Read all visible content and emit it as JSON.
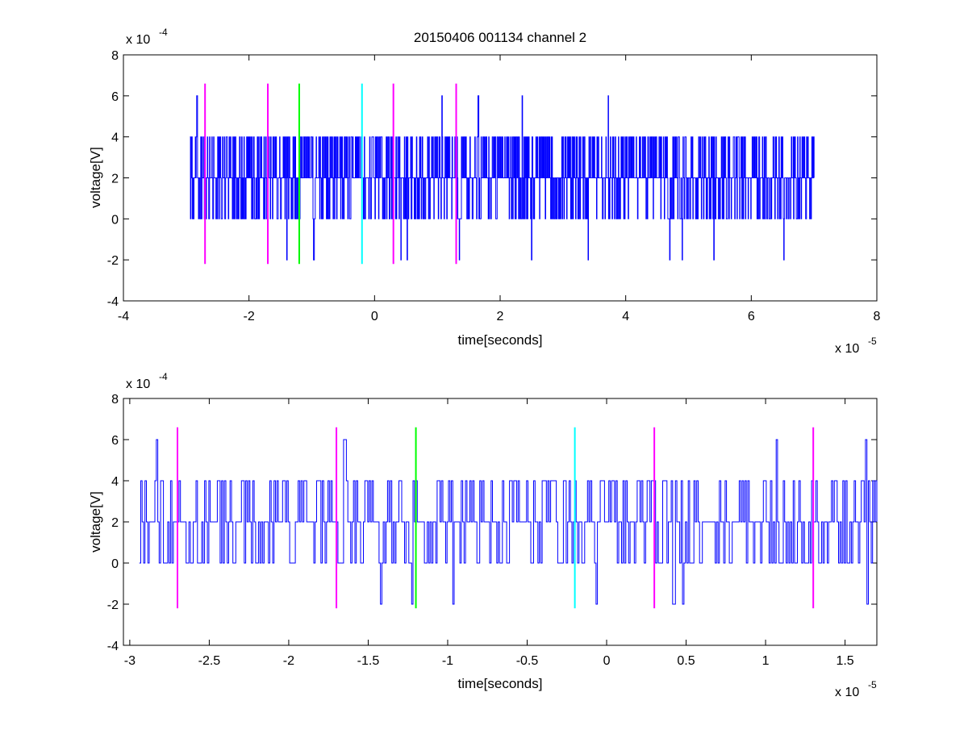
{
  "figure": {
    "title": "20150406 001134 channel 2"
  },
  "colors": {
    "trace": "#0000ff",
    "marker_magenta": "#ff00ff",
    "marker_green": "#00ff00",
    "marker_cyan": "#00ffff",
    "axes": "#000000"
  },
  "chart_data": [
    {
      "type": "line",
      "title": "20150406 001134 channel 2",
      "xlabel": "time[seconds]",
      "ylabel": "voltage[V]",
      "x_exponent_label": "x 10",
      "x_exponent": "-5",
      "y_exponent_label": "x 10",
      "y_exponent": "-4",
      "xlim": [
        -4,
        8
      ],
      "ylim": [
        -4,
        8
      ],
      "x_ticks": [
        "-4",
        "-2",
        "0",
        "2",
        "4",
        "6",
        "8"
      ],
      "y_ticks": [
        "-4",
        "-2",
        "0",
        "2",
        "4",
        "6",
        "8"
      ],
      "grid": false,
      "series": [
        {
          "signal_range_x": [
            -2.94,
            7.0
          ],
          "levels_y": [
            -2,
            0,
            2,
            4,
            6
          ],
          "baseline_y": 2,
          "upper_y": 4,
          "lower_y": 0,
          "peaks": [
            [
              -2.83,
              6
            ],
            [
              1.07,
              6
            ],
            [
              1.65,
              6
            ],
            [
              2.35,
              6
            ],
            [
              3.72,
              6
            ],
            [
              6.52,
              6
            ]
          ],
          "troughs": [
            [
              -1.4,
              -2
            ],
            [
              -1.2,
              -2
            ],
            [
              -0.97,
              -2
            ],
            [
              0.42,
              -2
            ],
            [
              0.52,
              -2
            ],
            [
              1.35,
              -2
            ],
            [
              2.5,
              -2
            ],
            [
              3.4,
              -2
            ],
            [
              4.7,
              -2
            ],
            [
              4.9,
              -2
            ],
            [
              5.4,
              -2
            ],
            [
              6.52,
              -2
            ]
          ]
        }
      ],
      "markers": [
        {
          "x": -2.7,
          "color": "magenta",
          "y_range": [
            -2.2,
            6.6
          ]
        },
        {
          "x": -1.7,
          "color": "magenta",
          "y_range": [
            -2.2,
            6.6
          ]
        },
        {
          "x": -1.2,
          "color": "green",
          "y_range": [
            -2.2,
            6.6
          ]
        },
        {
          "x": -0.2,
          "color": "cyan",
          "y_range": [
            -2.2,
            6.6
          ]
        },
        {
          "x": 0.3,
          "color": "magenta",
          "y_range": [
            -2.2,
            6.6
          ]
        },
        {
          "x": 1.3,
          "color": "magenta",
          "y_range": [
            -2.2,
            6.6
          ]
        }
      ]
    },
    {
      "type": "line",
      "xlabel": "time[seconds]",
      "ylabel": "voltage[V]",
      "x_exponent_label": "x 10",
      "x_exponent": "-5",
      "y_exponent_label": "x 10",
      "y_exponent": "-4",
      "xlim": [
        -3.04,
        1.7
      ],
      "ylim": [
        -4,
        8
      ],
      "x_ticks": [
        "-3",
        "-2.5",
        "-2",
        "-1.5",
        "-1",
        "-0.5",
        "0",
        "0.5",
        "1",
        "1.5"
      ],
      "y_ticks": [
        "-4",
        "-2",
        "0",
        "2",
        "4",
        "6",
        "8"
      ],
      "grid": false,
      "series": [
        {
          "signal_range_x": [
            -2.94,
            1.7
          ],
          "levels_y": [
            -2,
            0,
            2,
            4,
            6
          ],
          "baseline_y": 2,
          "upper_y": 4,
          "lower_y": 0,
          "peaks": [
            [
              -2.83,
              6
            ],
            [
              -1.65,
              6
            ],
            [
              1.07,
              6
            ],
            [
              1.63,
              6
            ]
          ],
          "troughs": [
            [
              -1.42,
              -2
            ],
            [
              -1.23,
              -2
            ],
            [
              -0.97,
              -2
            ],
            [
              -0.07,
              -2
            ],
            [
              0.42,
              -2
            ],
            [
              0.48,
              -2
            ],
            [
              1.64,
              -2
            ]
          ]
        }
      ],
      "markers": [
        {
          "x": -2.7,
          "color": "magenta",
          "y_range": [
            -2.2,
            6.6
          ]
        },
        {
          "x": -1.7,
          "color": "magenta",
          "y_range": [
            -2.2,
            6.6
          ]
        },
        {
          "x": -1.2,
          "color": "green",
          "y_range": [
            -2.2,
            6.6
          ]
        },
        {
          "x": -0.2,
          "color": "cyan",
          "y_range": [
            -2.2,
            6.6
          ]
        },
        {
          "x": 0.3,
          "color": "magenta",
          "y_range": [
            -2.2,
            6.6
          ]
        },
        {
          "x": 1.3,
          "color": "magenta",
          "y_range": [
            -2.2,
            6.6
          ]
        }
      ]
    }
  ]
}
